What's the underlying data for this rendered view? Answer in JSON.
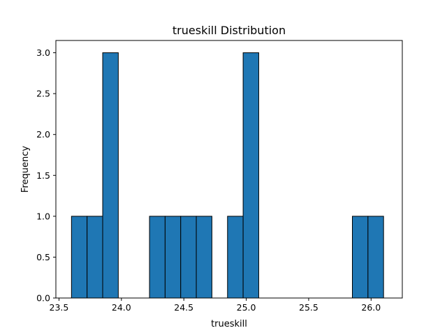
{
  "chart_data": {
    "type": "bar",
    "title": "trueskill Distribution",
    "xlabel": "trueskill",
    "ylabel": "Frequency",
    "xlim": [
      23.475,
      26.25
    ],
    "ylim": [
      0,
      3.15
    ],
    "xticks": [
      23.5,
      24.0,
      24.5,
      25.0,
      25.5,
      26.0
    ],
    "xtick_labels": [
      "23.5",
      "24.0",
      "24.5",
      "25.0",
      "25.5",
      "26.0"
    ],
    "yticks": [
      0.0,
      0.5,
      1.0,
      1.5,
      2.0,
      2.5,
      3.0
    ],
    "ytick_labels": [
      "0.0",
      "0.5",
      "1.0",
      "1.5",
      "2.0",
      "2.5",
      "3.0"
    ],
    "grid": false,
    "bar_color": "#1f77b4",
    "edge_color": "#000000",
    "bins": [
      {
        "x0": 23.6,
        "x1": 23.725,
        "value": 1
      },
      {
        "x0": 23.725,
        "x1": 23.85,
        "value": 1
      },
      {
        "x0": 23.85,
        "x1": 23.975,
        "value": 3
      },
      {
        "x0": 24.225,
        "x1": 24.35,
        "value": 1
      },
      {
        "x0": 24.35,
        "x1": 24.475,
        "value": 1
      },
      {
        "x0": 24.475,
        "x1": 24.6,
        "value": 1
      },
      {
        "x0": 24.6,
        "x1": 24.725,
        "value": 1
      },
      {
        "x0": 24.85,
        "x1": 24.975,
        "value": 1
      },
      {
        "x0": 24.975,
        "x1": 25.1,
        "value": 3
      },
      {
        "x0": 25.85,
        "x1": 25.975,
        "value": 1
      },
      {
        "x0": 25.975,
        "x1": 26.1,
        "value": 1
      }
    ]
  }
}
